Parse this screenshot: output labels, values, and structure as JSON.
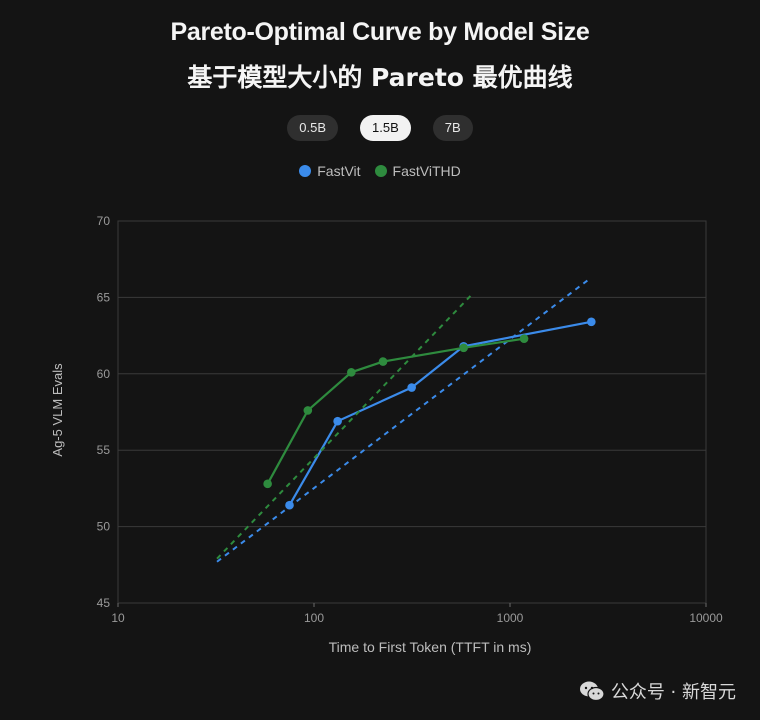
{
  "title_en": "Pareto-Optimal Curve by Model Size",
  "title_zh": "基于模型大小的 Pareto 最优曲线",
  "tabs": [
    {
      "label": "0.5B",
      "active": false
    },
    {
      "label": "1.5B",
      "active": true
    },
    {
      "label": "7B",
      "active": false
    }
  ],
  "watermark": "公众号 · 新智元",
  "chart_data": {
    "type": "line",
    "title": "Pareto-Optimal Curve by Model Size",
    "xlabel": "Time to First Token (TTFT in ms)",
    "ylabel": "Ag-5 VLM Evals",
    "xscale": "log",
    "xlim": [
      10,
      10000
    ],
    "ylim": [
      45,
      70
    ],
    "x_ticks": [
      "10",
      "100",
      "1000",
      "10000"
    ],
    "y_ticks": [
      "45",
      "50",
      "55",
      "60",
      "65",
      "70"
    ],
    "grid": true,
    "legend_position": "top-center",
    "series": [
      {
        "name": "FastVit",
        "color": "#3b8bea",
        "points": [
          [
            75,
            51.4
          ],
          [
            132,
            56.9
          ],
          [
            315,
            59.1
          ],
          [
            580,
            61.8
          ],
          [
            2600,
            63.4
          ]
        ],
        "trend": [
          [
            32,
            47.7
          ],
          [
            2600,
            66.3
          ]
        ]
      },
      {
        "name": "FastViTHD",
        "color": "#2e8b3e",
        "points": [
          [
            58,
            52.8
          ],
          [
            93,
            57.6
          ],
          [
            155,
            60.1
          ],
          [
            225,
            60.8
          ],
          [
            580,
            61.7
          ],
          [
            1180,
            62.3
          ]
        ],
        "trend": [
          [
            32,
            47.9
          ],
          [
            640,
            65.2
          ]
        ]
      }
    ]
  }
}
